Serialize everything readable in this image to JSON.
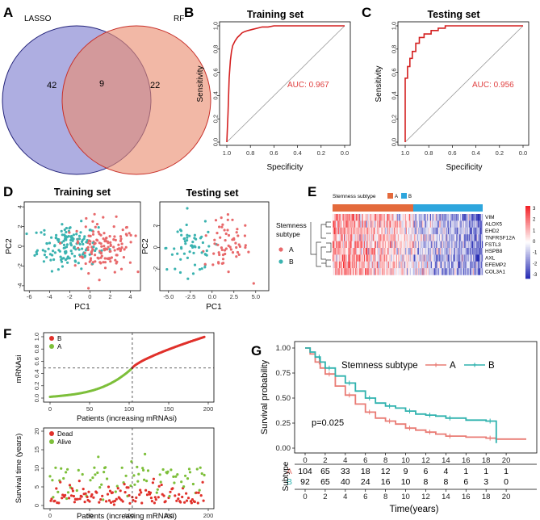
{
  "chart_data": [
    {
      "panel": "A",
      "type": "venn",
      "sets": [
        {
          "name": "LASSO",
          "only": 42,
          "color": "#8f8fd6"
        },
        {
          "name": "RF",
          "only": 22,
          "color": "#ea8c70"
        }
      ],
      "overlap": 9
    },
    {
      "panel": "B",
      "type": "line",
      "title": "Training set",
      "xlabel": "Specificity",
      "ylabel": "Sensitivity",
      "xlim": [
        1.0,
        0.0
      ],
      "ylim": [
        0.0,
        1.0
      ],
      "xticks": [
        "1.0",
        "0.8",
        "0.6",
        "0.4",
        "0.2",
        "0.0"
      ],
      "yticks": [
        "0.0",
        "0.2",
        "0.4",
        "0.6",
        "0.8",
        "1.0"
      ],
      "annotation": "AUC: 0.967",
      "specificity": [
        1.0,
        0.99,
        0.98,
        0.97,
        0.96,
        0.95,
        0.93,
        0.91,
        0.89,
        0.87,
        0.85,
        0.82,
        0.78,
        0.74,
        0.7,
        0.65,
        0.6,
        0.55,
        0.0
      ],
      "sensitivity": [
        0.0,
        0.25,
        0.55,
        0.7,
        0.78,
        0.83,
        0.87,
        0.9,
        0.92,
        0.94,
        0.95,
        0.96,
        0.97,
        0.98,
        0.99,
        0.99,
        1.0,
        1.0,
        1.0
      ]
    },
    {
      "panel": "C",
      "type": "line",
      "title": "Testing set",
      "xlabel": "Specificity",
      "ylabel": "Sensitivity",
      "xlim": [
        1.0,
        0.0
      ],
      "ylim": [
        0.0,
        1.0
      ],
      "xticks": [
        "1.0",
        "0.8",
        "0.6",
        "0.4",
        "0.2",
        "0.0"
      ],
      "yticks": [
        "0.0",
        "0.2",
        "0.4",
        "0.6",
        "0.8",
        "1.0"
      ],
      "annotation": "AUC: 0.956",
      "specificity": [
        1.0,
        1.0,
        0.98,
        0.98,
        0.96,
        0.96,
        0.94,
        0.94,
        0.91,
        0.91,
        0.88,
        0.88,
        0.84,
        0.84,
        0.78,
        0.78,
        0.72,
        0.72,
        0.66,
        0.66,
        0.0
      ],
      "sensitivity": [
        0.0,
        0.55,
        0.55,
        0.65,
        0.65,
        0.72,
        0.72,
        0.78,
        0.78,
        0.85,
        0.85,
        0.9,
        0.9,
        0.93,
        0.93,
        0.96,
        0.96,
        0.98,
        0.98,
        1.0,
        1.0
      ]
    },
    {
      "panel": "D",
      "type": "scatter",
      "titles": [
        "Training set",
        "Testing set"
      ],
      "xlabel": "PC1",
      "ylabel": "PC2",
      "legend_title": "Stemness subtype",
      "legend": [
        {
          "name": "A",
          "color": "#e8696b"
        },
        {
          "name": "B",
          "color": "#3bb3b0"
        }
      ],
      "train_xticks": [
        "-6",
        "-4",
        "-2",
        "0",
        "2",
        "4"
      ],
      "train_yticks": [
        "-4",
        "-2",
        "0",
        "2",
        "4"
      ],
      "test_xticks": [
        "-5.0",
        "-2.5",
        "0.0",
        "2.5",
        "5.0"
      ],
      "test_yticks": [
        "-2",
        "0",
        "2"
      ],
      "train_xlim": [
        -6.5,
        5
      ],
      "train_ylim": [
        -4.5,
        4.5
      ],
      "test_xlim": [
        -6,
        6.5
      ],
      "test_ylim": [
        -4,
        4.2
      ],
      "train_points_per_group": 140,
      "test_points_per_group": 60
    },
    {
      "panel": "E",
      "type": "heatmap",
      "annotation_title": "Stemness subtype",
      "groups": [
        {
          "name": "A",
          "color": "#e46a3c"
        },
        {
          "name": "B",
          "color": "#2ea6dd"
        }
      ],
      "genes": [
        "VIM",
        "ALOX5",
        "EHD2",
        "TNFRSF12A",
        "FSTL3",
        "HSPB8",
        "AXL",
        "EFEMP2",
        "COL3A1"
      ],
      "scale_ticks": [
        "3",
        "2",
        "1",
        "0",
        "-1",
        "-2",
        "-3"
      ],
      "columns": 200
    },
    {
      "panel": "F",
      "type": "scatter",
      "xlabel": "Patients (increasing mRNAsi)",
      "top_ylabel": "mRNAsi",
      "bottom_ylabel": "Survival time (years)",
      "xticks": [
        "0",
        "50",
        "100",
        "150",
        "200"
      ],
      "top_yticks": [
        "0.0",
        "0.2",
        "0.4",
        "0.6",
        "0.8",
        "1.0"
      ],
      "bottom_yticks": [
        "0",
        "5",
        "10",
        "15",
        "20"
      ],
      "cutoff_patient": 104,
      "cutoff_value": 0.49,
      "top_legend": [
        {
          "name": "B",
          "color": "#e0312b"
        },
        {
          "name": "A",
          "color": "#7dbf3a"
        }
      ],
      "bottom_legend": [
        {
          "name": "Dead",
          "color": "#e0312b"
        },
        {
          "name": "Alive",
          "color": "#7dbf3a"
        }
      ],
      "n_patients": 196
    },
    {
      "panel": "G",
      "type": "line",
      "legend_title": "Stemness subtype",
      "series": [
        {
          "name": "A",
          "color": "#e97b74",
          "times": [
            0,
            0.5,
            1,
            1.5,
            2,
            3,
            4,
            5,
            6,
            7,
            8,
            9,
            10,
            11,
            12,
            13,
            14,
            16,
            18,
            19,
            22
          ],
          "surv": [
            1.0,
            0.94,
            0.86,
            0.8,
            0.74,
            0.62,
            0.53,
            0.44,
            0.36,
            0.3,
            0.27,
            0.24,
            0.2,
            0.18,
            0.16,
            0.14,
            0.12,
            0.11,
            0.1,
            0.09,
            0.09
          ]
        },
        {
          "name": "B",
          "color": "#2fb2ae",
          "times": [
            0,
            0.5,
            1,
            1.5,
            2,
            3,
            4,
            5,
            6,
            7,
            8,
            9,
            10,
            11,
            12,
            13,
            14,
            16,
            18,
            19,
            19.01
          ],
          "surv": [
            1.0,
            0.96,
            0.91,
            0.86,
            0.8,
            0.72,
            0.65,
            0.57,
            0.5,
            0.45,
            0.42,
            0.4,
            0.37,
            0.34,
            0.33,
            0.32,
            0.3,
            0.28,
            0.27,
            0.27,
            0.05
          ]
        }
      ],
      "ylabel": "Survival probability",
      "xlabel": "Time(years)",
      "xticks": [
        "0",
        "2",
        "4",
        "6",
        "8",
        "10",
        "12",
        "14",
        "16",
        "18",
        "20"
      ],
      "yticks": [
        "0.00",
        "0.25",
        "0.50",
        "0.75",
        "1.00"
      ],
      "xlim": [
        0,
        22
      ],
      "pvalue": "p=0.025",
      "risk_label": "Subtype",
      "risk_table": [
        {
          "group": "A",
          "counts": [
            "104",
            "65",
            "33",
            "18",
            "12",
            "9",
            "6",
            "4",
            "1",
            "1",
            "1"
          ]
        },
        {
          "group": "B",
          "counts": [
            "92",
            "65",
            "40",
            "24",
            "16",
            "10",
            "8",
            "8",
            "6",
            "3",
            "0"
          ]
        }
      ]
    }
  ]
}
